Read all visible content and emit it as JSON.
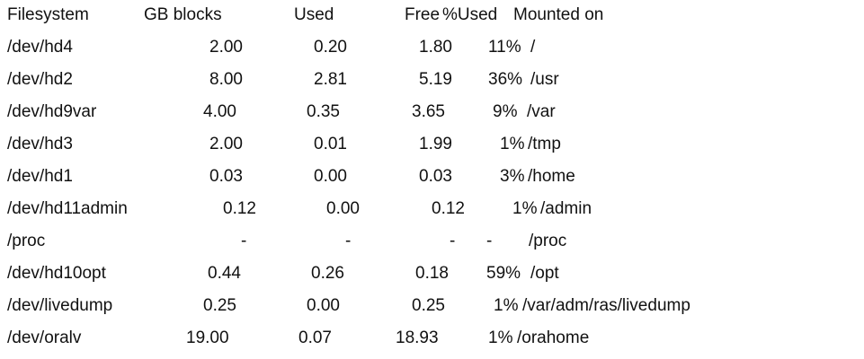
{
  "table": {
    "header": [
      "Filesystem",
      "GB blocks",
      "Used",
      "Free",
      "%Used",
      "Mounted on"
    ],
    "rows": [
      [
        "/dev/hd4",
        "2.00",
        "0.20",
        "1.80",
        "11%",
        "/"
      ],
      [
        "/dev/hd2",
        "8.00",
        "2.81",
        "5.19",
        "36%",
        "/usr"
      ],
      [
        "/dev/hd9var",
        "4.00",
        "0.35",
        "3.65",
        "9%",
        "/var"
      ],
      [
        "/dev/hd3",
        "2.00",
        "0.01",
        "1.99",
        "1%",
        "/tmp"
      ],
      [
        "/dev/hd1",
        "0.03",
        "0.00",
        "0.03",
        "3%",
        "/home"
      ],
      [
        "/dev/hd11admin",
        "0.12",
        "0.00",
        "0.12",
        "1%",
        "/admin"
      ],
      [
        "/proc",
        "-",
        "-",
        "-",
        "-",
        "/proc"
      ],
      [
        "/dev/hd10opt",
        "0.44",
        "0.26",
        "0.18",
        "59%",
        "/opt"
      ],
      [
        "/dev/livedump",
        "0.25",
        "0.00",
        "0.25",
        "1%",
        "/var/adm/ras/livedump"
      ],
      [
        "/dev/oralv",
        "19.00",
        "0.07",
        "18.93",
        "1%",
        "/orahome"
      ]
    ]
  }
}
